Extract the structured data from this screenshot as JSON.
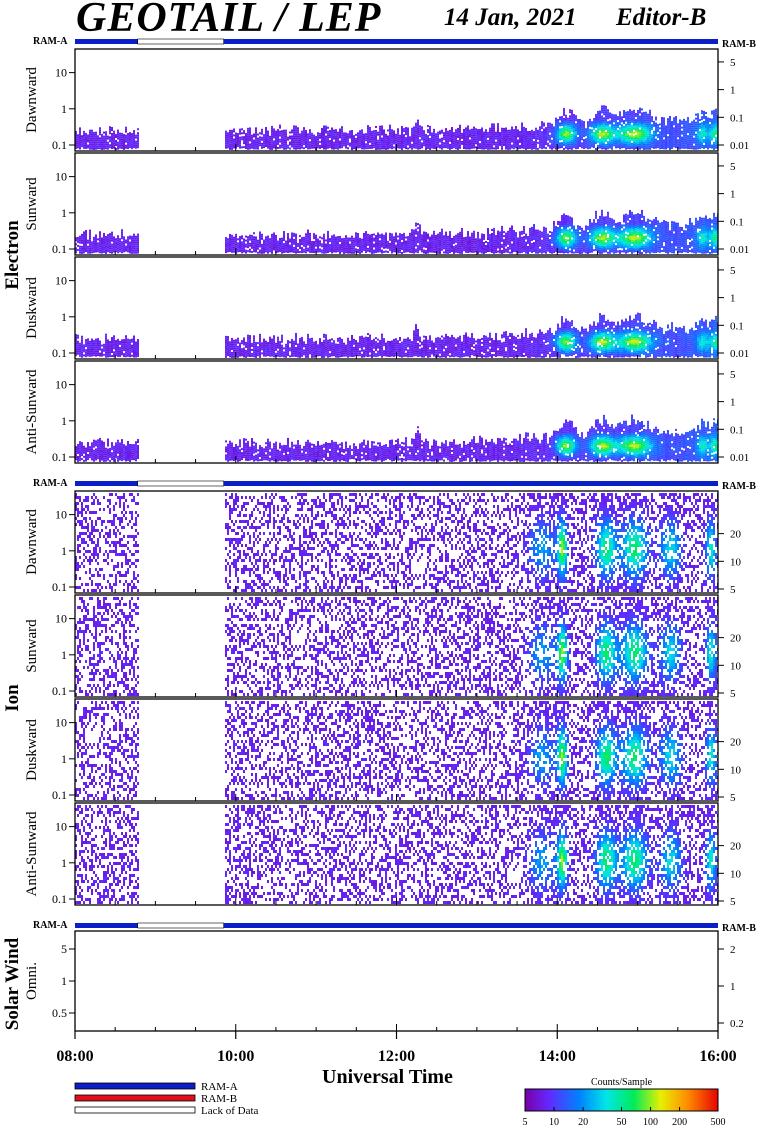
{
  "header": {
    "title": "GEOTAIL / LEP",
    "date": "14 Jan, 2021",
    "editor": "Editor-B"
  },
  "colors": {
    "ram_a": "#0a1fc8",
    "ram_b": "#e0101a",
    "lack": "#ffffff",
    "frame": "#000000"
  },
  "chart_data": [
    {
      "type": "heatmap",
      "group": "Electron",
      "panels": [
        {
          "label": "Dawnward",
          "left_ticks": [
            "0.1",
            "1",
            "10"
          ],
          "right_ticks": [
            "0.01",
            "0.1",
            "1",
            "5"
          ]
        },
        {
          "label": "Sunward",
          "left_ticks": [
            "0.1",
            "1",
            "10"
          ],
          "right_ticks": [
            "0.01",
            "0.1",
            "1",
            "5"
          ]
        },
        {
          "label": "Duskward",
          "left_ticks": [
            "0.1",
            "1",
            "10"
          ],
          "right_ticks": [
            "0.01",
            "0.1",
            "1",
            "5"
          ]
        },
        {
          "label": "Anti-Sunward",
          "left_ticks": [
            "0.1",
            "1",
            "10"
          ],
          "right_ticks": [
            "0.01",
            "0.1",
            "1",
            "5"
          ]
        }
      ],
      "ram_left": "RAM-A",
      "ram_right": "RAM-B"
    },
    {
      "type": "heatmap",
      "group": "Ion",
      "panels": [
        {
          "label": "Dawnward",
          "left_ticks": [
            "0.1",
            "1",
            "10"
          ],
          "right_ticks": [
            "5",
            "10",
            "20"
          ]
        },
        {
          "label": "Sunward",
          "left_ticks": [
            "0.1",
            "1",
            "10"
          ],
          "right_ticks": [
            "5",
            "10",
            "20"
          ]
        },
        {
          "label": "Duskward",
          "left_ticks": [
            "0.1",
            "1",
            "10"
          ],
          "right_ticks": [
            "5",
            "10",
            "20"
          ]
        },
        {
          "label": "Anti-Sunward",
          "left_ticks": [
            "0.1",
            "1",
            "10"
          ],
          "right_ticks": [
            "5",
            "10",
            "20"
          ]
        }
      ],
      "ram_left": "RAM-A",
      "ram_right": "RAM-B"
    },
    {
      "type": "heatmap",
      "group": "Solar Wind",
      "panels": [
        {
          "label": "Omni.",
          "left_ticks": [
            "0.5",
            "1",
            "5"
          ],
          "right_ticks": [
            "0.2",
            "1",
            "2"
          ]
        }
      ],
      "ram_left": "RAM-A",
      "ram_right": "RAM-B"
    }
  ],
  "x_axis": {
    "label": "Universal Time",
    "ticks": [
      "08:00",
      "10:00",
      "12:00",
      "14:00",
      "16:00"
    ],
    "range_hours": [
      8,
      16
    ]
  },
  "ram_status": {
    "lack_of_data_hours": [
      8.78,
      9.85
    ]
  },
  "legend": {
    "items": [
      "RAM-A",
      "RAM-B",
      "Lack of Data"
    ]
  },
  "colorbar": {
    "title": "Counts/Sample",
    "ticks": [
      "5",
      "10",
      "20",
      "50",
      "100",
      "200",
      "500"
    ]
  }
}
